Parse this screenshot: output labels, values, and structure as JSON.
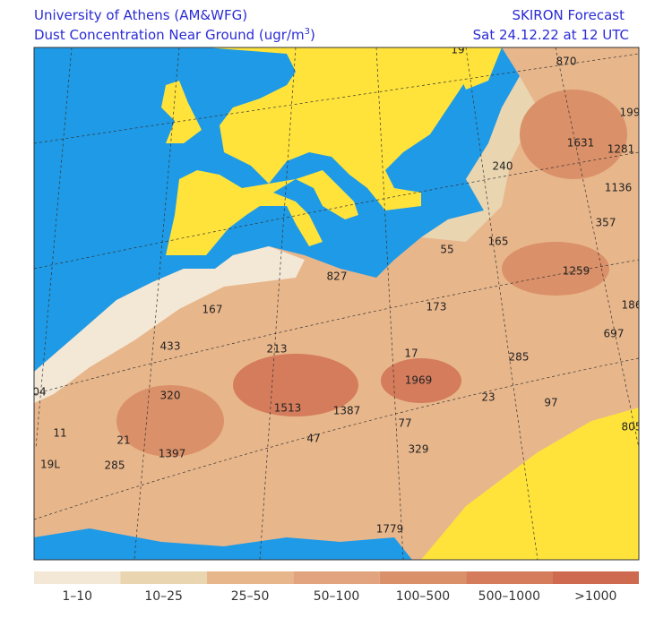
{
  "header": {
    "title": "University of Athens (AM&WFG)",
    "subtitle": "Dust Concentration Near Ground (ugr/m",
    "superscript": "3",
    "subtitle_end": ")",
    "forecast": "SKIRON Forecast",
    "date": "Sat 24.12.22 at 12 UTC"
  },
  "legend": [
    {
      "label": "1–10",
      "color": "#f3e8d6"
    },
    {
      "label": "10–25",
      "color": "#e9d5b0"
    },
    {
      "label": "25–50",
      "color": "#e8b68b"
    },
    {
      "label": "50–100",
      "color": "#e2a47f"
    },
    {
      "label": "100–500",
      "color": "#da9068"
    },
    {
      "label": "500–1000",
      "color": "#d47c5c"
    },
    {
      "label": ">1000",
      "color": "#cd6a4f"
    }
  ],
  "labels": [
    "19",
    "870",
    "199",
    "1631",
    "1281",
    "240",
    "1136",
    "357",
    "55",
    "165",
    "1259",
    "827",
    "167",
    "173",
    "186",
    "697",
    "433",
    "213",
    "17",
    "285",
    "04",
    "320",
    "1969",
    "23",
    "97",
    "1513",
    "1387",
    "805",
    "11",
    "21",
    "77",
    "47",
    "329",
    "1397",
    "19L",
    "285",
    "1779"
  ]
}
